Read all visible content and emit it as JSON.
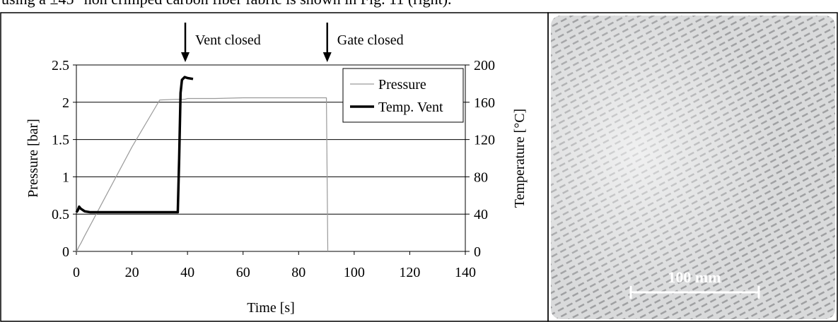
{
  "text_above": "using a ±45° non crimped carbon fiber fabric is shown in Fig. 11 (right).",
  "chart_data": {
    "type": "line",
    "xlabel": "Time [s]",
    "ylabel": "Pressure [bar]",
    "y2label": "Temperature [°C]",
    "x": [
      0,
      0.5,
      1,
      1.5,
      3,
      5,
      10,
      20,
      30,
      36.5,
      37,
      37.5,
      38,
      39,
      40,
      42,
      50,
      60,
      70,
      80,
      90,
      90.5
    ],
    "series": [
      {
        "name": "Pressure",
        "color": "#9a9a9a",
        "values": [
          0,
          0.03,
          0.07,
          0.1,
          0.21,
          0.35,
          0.7,
          1.4,
          2.03,
          2.04,
          2.04,
          2.04,
          2.04,
          2.04,
          2.05,
          2.05,
          2.05,
          2.06,
          2.06,
          2.06,
          2.06,
          0
        ]
      },
      {
        "name": "Temp. Vent",
        "color": "#000000",
        "axis": "y2",
        "values": [
          42,
          44,
          48,
          46,
          43,
          42,
          42,
          42,
          42,
          42,
          100,
          170,
          184,
          187,
          186,
          185,
          null,
          null,
          null,
          null,
          null,
          null
        ]
      }
    ],
    "xlim": [
      0,
      140
    ],
    "xticks": [
      0,
      20,
      40,
      60,
      80,
      100,
      120,
      140
    ],
    "ylim": [
      0,
      2.5
    ],
    "yticks": [
      0,
      0.5,
      1,
      1.5,
      2,
      2.5
    ],
    "y2lim": [
      0,
      200
    ],
    "y2ticks": [
      0,
      40,
      80,
      120,
      160,
      200
    ],
    "grid": true,
    "legend": "upper right",
    "annotations": [
      {
        "text": "Vent closed",
        "x": 39.2
      },
      {
        "text": "Gate closed",
        "x": 90.3
      }
    ]
  },
  "photo": {
    "scale_label": "100 mm"
  }
}
